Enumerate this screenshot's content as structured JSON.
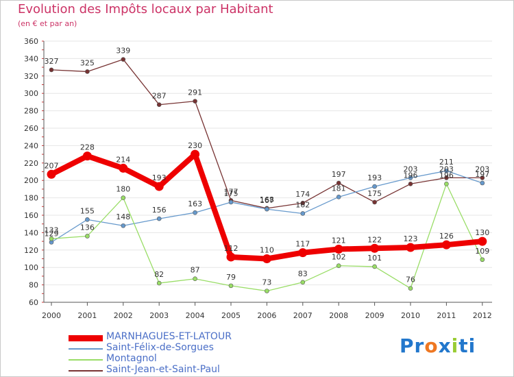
{
  "header": {
    "title": "Evolution des Impôts locaux par Habitant",
    "subtitle": "(en € et par an)"
  },
  "chart_data": {
    "type": "line",
    "title": "Evolution des Impôts locaux par Habitant",
    "subtitle": "(en € et par an)",
    "xlabel": "",
    "ylabel": "",
    "ylim": [
      60,
      360
    ],
    "ytick_step": 20,
    "grid": "horizontal",
    "x": [
      "2000",
      "2001",
      "2002",
      "2003",
      "2004",
      "2005",
      "2006",
      "2007",
      "2008",
      "2009",
      "2010",
      "2011",
      "2012"
    ],
    "series": [
      {
        "name": "MARNHAGUES-ET-LATOUR",
        "color": "#ee0000",
        "values": [
          207,
          228,
          214,
          193,
          230,
          112,
          110,
          117,
          121,
          122,
          123,
          126,
          130
        ]
      },
      {
        "name": "Saint-Félix-de-Sorgues",
        "color": "#6699cc",
        "values": [
          129,
          155,
          148,
          156,
          163,
          175,
          167,
          162,
          181,
          193,
          203,
          211,
          197
        ]
      },
      {
        "name": "Montagnol",
        "color": "#99dd66",
        "values": [
          133,
          136,
          180,
          82,
          87,
          79,
          73,
          83,
          102,
          101,
          76,
          196,
          109
        ]
      },
      {
        "name": "Saint-Jean-et-Saint-Paul",
        "color": "#773333",
        "values": [
          327,
          325,
          339,
          287,
          291,
          177,
          168,
          174,
          197,
          175,
          196,
          203,
          203
        ]
      }
    ],
    "data_labels": [
      {
        "year": "2000",
        "value": 207,
        "text": "207"
      },
      {
        "year": "2001",
        "value": 228,
        "text": "228"
      },
      {
        "year": "2002",
        "value": 214,
        "text": "214"
      },
      {
        "year": "2003",
        "value": 193,
        "text": "193"
      },
      {
        "year": "2004",
        "value": 230,
        "text": "230"
      },
      {
        "year": "2005",
        "value": 112,
        "text": "112"
      },
      {
        "year": "2006",
        "value": 110,
        "text": "110"
      },
      {
        "year": "2007",
        "value": 117,
        "text": "117"
      },
      {
        "year": "2008",
        "value": 121,
        "text": "121"
      },
      {
        "year": "2009",
        "value": 122,
        "text": "122"
      },
      {
        "year": "2010",
        "value": 123,
        "text": "123"
      },
      {
        "year": "2011",
        "value": 126,
        "text": "126"
      },
      {
        "year": "2012",
        "value": 130,
        "text": "130"
      },
      {
        "year": "2000",
        "value": 129,
        "text": "129"
      },
      {
        "year": "2001",
        "value": 155,
        "text": "155"
      },
      {
        "year": "2002",
        "value": 148,
        "text": "148"
      },
      {
        "year": "2003",
        "value": 156,
        "text": "156"
      },
      {
        "year": "2004",
        "value": 163,
        "text": "163"
      },
      {
        "year": "2005",
        "value": 175,
        "text": "175"
      },
      {
        "year": "2006",
        "value": 167,
        "text": "167"
      },
      {
        "year": "2007",
        "value": 162,
        "text": "162"
      },
      {
        "year": "2008",
        "value": 181,
        "text": "181"
      },
      {
        "year": "2009",
        "value": 193,
        "text": "193"
      },
      {
        "year": "2010",
        "value": 203,
        "text": "203"
      },
      {
        "year": "2011",
        "value": 211,
        "text": "211"
      },
      {
        "year": "2012",
        "value": 197,
        "text": "197"
      },
      {
        "year": "2000",
        "value": 133,
        "text": "133"
      },
      {
        "year": "2001",
        "value": 136,
        "text": "136"
      },
      {
        "year": "2002",
        "value": 180,
        "text": "180"
      },
      {
        "year": "2003",
        "value": 82,
        "text": "82"
      },
      {
        "year": "2004",
        "value": 87,
        "text": "87"
      },
      {
        "year": "2005",
        "value": 79,
        "text": "79"
      },
      {
        "year": "2006",
        "value": 73,
        "text": "73"
      },
      {
        "year": "2007",
        "value": 83,
        "text": "83"
      },
      {
        "year": "2008",
        "value": 102,
        "text": "102"
      },
      {
        "year": "2009",
        "value": 101,
        "text": "101"
      },
      {
        "year": "2010",
        "value": 76,
        "text": "76"
      },
      {
        "year": "2011",
        "value": 196,
        "text": "196"
      },
      {
        "year": "2012",
        "value": 109,
        "text": "109"
      },
      {
        "year": "2000",
        "value": 327,
        "text": "327"
      },
      {
        "year": "2001",
        "value": 325,
        "text": "325"
      },
      {
        "year": "2002",
        "value": 339,
        "text": "339"
      },
      {
        "year": "2003",
        "value": 287,
        "text": "287"
      },
      {
        "year": "2004",
        "value": 291,
        "text": "291"
      },
      {
        "year": "2005",
        "value": 177,
        "text": "177"
      },
      {
        "year": "2006",
        "value": 168,
        "text": "168"
      },
      {
        "year": "2007",
        "value": 174,
        "text": "174"
      },
      {
        "year": "2008",
        "value": 197,
        "text": "197"
      },
      {
        "year": "2009",
        "value": 175,
        "text": "175"
      },
      {
        "year": "2010",
        "value": 196,
        "text": "196"
      },
      {
        "year": "2011",
        "value": 203,
        "text": "203"
      },
      {
        "year": "2012",
        "value": 203,
        "text": "203"
      }
    ],
    "legend_position": "bottom-left"
  },
  "legend": {
    "items": [
      {
        "label": "MARNHAGUES-ET-LATOUR",
        "color": "#ee0000"
      },
      {
        "label": "Saint-Félix-de-Sorgues",
        "color": "#6699cc"
      },
      {
        "label": "Montagnol",
        "color": "#99dd66"
      },
      {
        "label": "Saint-Jean-et-Saint-Paul",
        "color": "#773333"
      }
    ]
  },
  "logo": {
    "letters": [
      "P",
      "r",
      "o",
      "x",
      "i",
      "t",
      "i"
    ],
    "colors": [
      "#2277cc",
      "#2277cc",
      "#ee7722",
      "#2277cc",
      "#99cc33",
      "#2277cc",
      "#2277cc"
    ],
    "text": "Proxiti"
  }
}
